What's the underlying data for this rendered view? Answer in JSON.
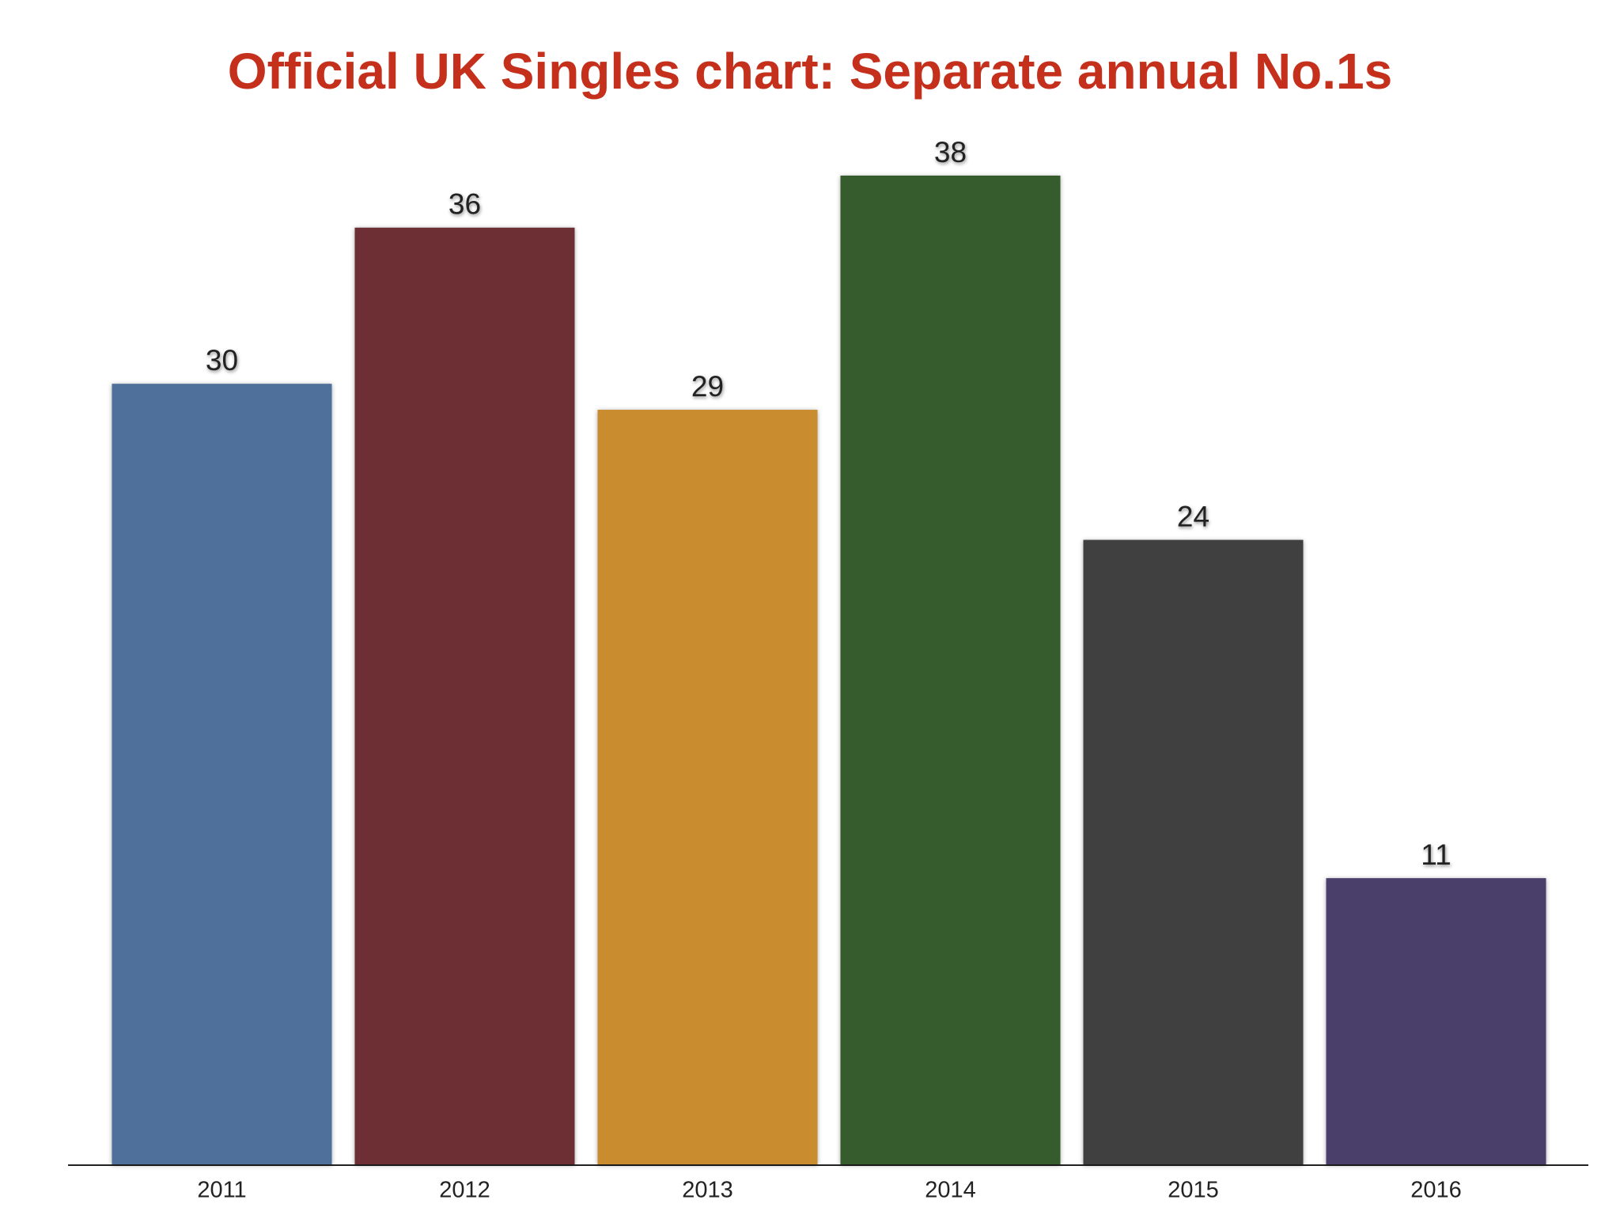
{
  "chart_data": {
    "type": "bar",
    "title": "Official UK Singles chart: Separate annual No.1s",
    "categories": [
      "2011",
      "2012",
      "2013",
      "2014",
      "2015",
      "2016"
    ],
    "values": [
      30,
      36,
      29,
      38,
      24,
      11
    ],
    "colors": [
      "#4f709b",
      "#6d2f34",
      "#c98c2f",
      "#365b2c",
      "#404040",
      "#4a3e6a"
    ]
  }
}
